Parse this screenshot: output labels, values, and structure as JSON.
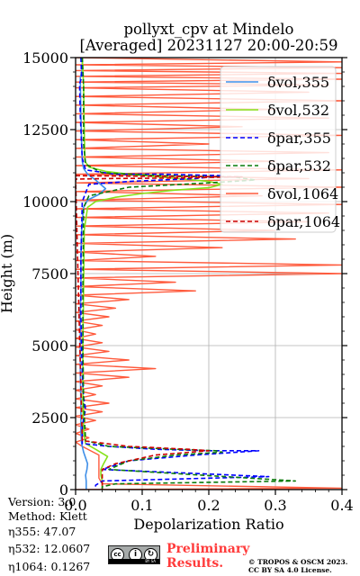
{
  "header": {
    "title_line1": "pollyxt_cpv at Mindelo",
    "title_line2": "[Averaged] 20231127 20:00-20:59"
  },
  "info": {
    "version": "Version: 3.0",
    "method": "Method: Klett",
    "eta355": "η355:  47.07",
    "eta532": "η532: 12.0607",
    "eta1064": "η1064: 0.1267"
  },
  "footer": {
    "cc_text": "cc",
    "cc_by": "BY",
    "cc_sa": "SA",
    "preliminary_line1": "Preliminary",
    "preliminary_line2": "Results.",
    "copyright_line1": "© TROPOS & OSCM 2023.",
    "copyright_line2": "CC BY SA 4.0 License."
  },
  "colors": {
    "vol355": "#3f8fe8",
    "vol532": "#86e21a",
    "par355": "#0000ff",
    "par532": "#0a7a0a",
    "vol1064": "#ff5a3c",
    "par1064": "#cc0000",
    "grid": "#b0b0b0"
  },
  "chart_data": {
    "type": "line",
    "xlabel": "Depolarization Ratio",
    "ylabel": "Height (m)",
    "xlim": [
      0.0,
      0.4
    ],
    "ylim": [
      0,
      15000
    ],
    "xticks": [
      "0.0",
      "0.1",
      "0.2",
      "0.3",
      "0.4"
    ],
    "yticks": [
      "0",
      "2500",
      "5000",
      "7500",
      "10000",
      "12500",
      "15000"
    ],
    "grid": true,
    "legend_position": "top-right",
    "series": [
      {
        "name": "δvol,355",
        "style": "solid",
        "color_key": "vol355",
        "points": [
          [
            0.01,
            15000
          ],
          [
            0.01,
            14600
          ],
          [
            0.007,
            14300
          ],
          [
            0.008,
            13000
          ],
          [
            0.009,
            12000
          ],
          [
            0.01,
            11400
          ],
          [
            0.012,
            11150
          ],
          [
            0.018,
            10950
          ],
          [
            0.03,
            10750
          ],
          [
            0.045,
            10450
          ],
          [
            0.035,
            10250
          ],
          [
            0.018,
            10050
          ],
          [
            0.012,
            9800
          ],
          [
            0.009,
            9000
          ],
          [
            0.008,
            8000
          ],
          [
            0.008,
            7000
          ],
          [
            0.007,
            6000
          ],
          [
            0.007,
            5000
          ],
          [
            0.007,
            4000
          ],
          [
            0.008,
            3000
          ],
          [
            0.008,
            2000
          ],
          [
            0.009,
            1600
          ],
          [
            0.012,
            1300
          ],
          [
            0.015,
            1100
          ],
          [
            0.018,
            900
          ],
          [
            0.017,
            700
          ],
          [
            0.015,
            500
          ],
          [
            0.016,
            300
          ],
          [
            0.016,
            100
          ],
          [
            0.016,
            0
          ]
        ]
      },
      {
        "name": "δvol,532",
        "style": "solid",
        "color_key": "vol532",
        "points": [
          [
            0.01,
            15000
          ],
          [
            0.012,
            14000
          ],
          [
            0.013,
            12500
          ],
          [
            0.014,
            11400
          ],
          [
            0.02,
            11200
          ],
          [
            0.045,
            11050
          ],
          [
            0.08,
            10950
          ],
          [
            0.13,
            10850
          ],
          [
            0.2,
            10700
          ],
          [
            0.22,
            10600
          ],
          [
            0.2,
            10480
          ],
          [
            0.15,
            10400
          ],
          [
            0.1,
            10280
          ],
          [
            0.06,
            10150
          ],
          [
            0.03,
            10000
          ],
          [
            0.018,
            9800
          ],
          [
            0.013,
            9000
          ],
          [
            0.012,
            7000
          ],
          [
            0.011,
            5000
          ],
          [
            0.011,
            3000
          ],
          [
            0.012,
            2000
          ],
          [
            0.015,
            1600
          ],
          [
            0.03,
            1400
          ],
          [
            0.048,
            1150
          ],
          [
            0.042,
            900
          ],
          [
            0.038,
            700
          ],
          [
            0.038,
            500
          ],
          [
            0.04,
            300
          ],
          [
            0.04,
            100
          ],
          [
            0.04,
            0
          ]
        ]
      },
      {
        "name": "δpar,355",
        "style": "dashed",
        "color_key": "par355",
        "points": [
          [
            0.008,
            15000
          ],
          [
            0.009,
            14300
          ],
          [
            0.006,
            14100
          ],
          [
            0.007,
            13000
          ],
          [
            0.01,
            11500
          ],
          [
            0.015,
            11100
          ],
          [
            0.06,
            10950
          ],
          [
            0.13,
            10950
          ],
          [
            0.22,
            10900
          ],
          [
            0.18,
            10800
          ],
          [
            0.08,
            10700
          ],
          [
            0.02,
            10600
          ],
          [
            0.01,
            10000
          ],
          [
            0.008,
            8000
          ],
          [
            0.008,
            6000
          ],
          [
            0.01,
            4000
          ],
          [
            0.012,
            3200
          ],
          [
            0.015,
            2800
          ],
          [
            0.01,
            2200
          ],
          [
            0.01,
            1600
          ],
          [
            0.05,
            1500
          ],
          [
            0.12,
            1400
          ],
          [
            0.2,
            1350
          ],
          [
            0.275,
            1350
          ],
          [
            0.18,
            1200
          ],
          [
            0.08,
            1000
          ],
          [
            0.04,
            700
          ],
          [
            0.29,
            450
          ],
          [
            0.04,
            300
          ],
          [
            0.03,
            150
          ],
          [
            0.03,
            0
          ]
        ]
      },
      {
        "name": "δpar,532",
        "style": "dashed",
        "color_key": "par532",
        "points": [
          [
            0.01,
            15000
          ],
          [
            0.012,
            14000
          ],
          [
            0.012,
            12000
          ],
          [
            0.015,
            11300
          ],
          [
            0.04,
            11000
          ],
          [
            0.13,
            10900
          ],
          [
            0.24,
            10850
          ],
          [
            0.27,
            10750
          ],
          [
            0.2,
            10650
          ],
          [
            0.08,
            10500
          ],
          [
            0.02,
            10200
          ],
          [
            0.012,
            9800
          ],
          [
            0.011,
            7000
          ],
          [
            0.011,
            5000
          ],
          [
            0.012,
            3000
          ],
          [
            0.015,
            1700
          ],
          [
            0.05,
            1500
          ],
          [
            0.15,
            1400
          ],
          [
            0.21,
            1350
          ],
          [
            0.22,
            1300
          ],
          [
            0.15,
            1200
          ],
          [
            0.08,
            1000
          ],
          [
            0.05,
            700
          ],
          [
            0.33,
            300
          ],
          [
            0.06,
            200
          ],
          [
            0.04,
            100
          ],
          [
            0.04,
            0
          ]
        ]
      },
      {
        "name": "δvol,1064",
        "style": "solid",
        "color_key": "vol1064",
        "points": [
          [
            0.0,
            15000
          ],
          [
            0.4,
            14850
          ],
          [
            0.0,
            14750
          ],
          [
            0.4,
            14650
          ],
          [
            0.0,
            14550
          ],
          [
            0.4,
            14450
          ],
          [
            0.0,
            14350
          ],
          [
            0.4,
            14250
          ],
          [
            0.0,
            14150
          ],
          [
            0.38,
            14050
          ],
          [
            0.0,
            13950
          ],
          [
            0.35,
            13800
          ],
          [
            0.0,
            13650
          ],
          [
            0.4,
            13500
          ],
          [
            0.0,
            13350
          ],
          [
            0.3,
            13200
          ],
          [
            0.0,
            13050
          ],
          [
            0.38,
            12900
          ],
          [
            0.0,
            12750
          ],
          [
            0.25,
            12600
          ],
          [
            0.0,
            12450
          ],
          [
            0.4,
            12300
          ],
          [
            0.0,
            12150
          ],
          [
            0.2,
            12000
          ],
          [
            0.0,
            11850
          ],
          [
            0.38,
            11700
          ],
          [
            0.0,
            11550
          ],
          [
            0.3,
            11400
          ],
          [
            0.0,
            11250
          ],
          [
            0.4,
            11100
          ],
          [
            0.0,
            10950
          ],
          [
            0.35,
            10800
          ],
          [
            0.0,
            10650
          ],
          [
            0.4,
            10500
          ],
          [
            0.0,
            10350
          ],
          [
            0.28,
            10200
          ],
          [
            0.0,
            10050
          ],
          [
            0.4,
            9900
          ],
          [
            0.0,
            9750
          ],
          [
            0.38,
            9600
          ],
          [
            0.0,
            9450
          ],
          [
            0.35,
            9300
          ],
          [
            0.0,
            9150
          ],
          [
            0.3,
            9000
          ],
          [
            0.0,
            8850
          ],
          [
            0.33,
            8700
          ],
          [
            0.0,
            8550
          ],
          [
            0.22,
            8400
          ],
          [
            0.0,
            8250
          ],
          [
            0.12,
            8100
          ],
          [
            0.0,
            7950
          ],
          [
            0.4,
            7800
          ],
          [
            0.0,
            7650
          ],
          [
            0.4,
            7500
          ],
          [
            0.0,
            7350
          ],
          [
            0.15,
            7200
          ],
          [
            0.0,
            7050
          ],
          [
            0.18,
            6900
          ],
          [
            0.0,
            6750
          ],
          [
            0.08,
            6600
          ],
          [
            0.0,
            6450
          ],
          [
            0.06,
            6300
          ],
          [
            0.0,
            6150
          ],
          [
            0.05,
            6000
          ],
          [
            0.0,
            5850
          ],
          [
            0.04,
            5700
          ],
          [
            0.0,
            5550
          ],
          [
            0.03,
            5400
          ],
          [
            0.0,
            5250
          ],
          [
            0.04,
            5100
          ],
          [
            0.0,
            4950
          ],
          [
            0.05,
            4800
          ],
          [
            0.0,
            4650
          ],
          [
            0.08,
            4500
          ],
          [
            0.0,
            4350
          ],
          [
            0.12,
            4200
          ],
          [
            0.0,
            4050
          ],
          [
            0.08,
            3900
          ],
          [
            0.0,
            3750
          ],
          [
            0.04,
            3600
          ],
          [
            0.0,
            3450
          ],
          [
            0.03,
            3300
          ],
          [
            0.0,
            3150
          ],
          [
            0.05,
            3000
          ],
          [
            0.0,
            2850
          ],
          [
            0.04,
            2700
          ],
          [
            0.0,
            2550
          ],
          [
            0.03,
            2400
          ],
          [
            0.0,
            2250
          ],
          [
            0.02,
            2100
          ],
          [
            0.0,
            1950
          ],
          [
            0.02,
            1800
          ],
          [
            0.0,
            1650
          ],
          [
            0.01,
            1500
          ],
          [
            0.035,
            1200
          ],
          [
            0.035,
            800
          ],
          [
            0.035,
            400
          ],
          [
            0.04,
            200
          ],
          [
            0.4,
            50
          ],
          [
            0.0,
            0
          ]
        ]
      },
      {
        "name": "δpar,1064",
        "style": "dashed",
        "color_key": "par1064",
        "points": [
          [
            0.0,
            10900
          ],
          [
            0.1,
            10880
          ],
          [
            0.25,
            10860
          ],
          [
            0.15,
            10820
          ],
          [
            0.05,
            10800
          ],
          [
            0.0,
            10780
          ],
          [
            0.01,
            1700
          ],
          [
            0.08,
            1500
          ],
          [
            0.17,
            1400
          ],
          [
            0.2,
            1350
          ],
          [
            0.12,
            1200
          ],
          [
            0.06,
            900
          ],
          [
            0.04,
            700
          ],
          [
            0.04,
            400
          ],
          [
            0.04,
            200
          ],
          [
            0.04,
            0
          ]
        ]
      }
    ]
  }
}
